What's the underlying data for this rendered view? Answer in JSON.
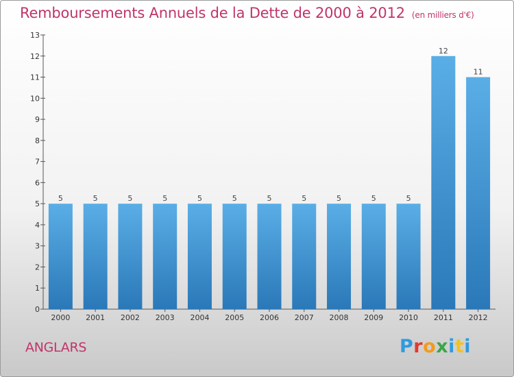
{
  "title": "Remboursements Annuels de la Dette de 2000 à 2012",
  "subtitle": "(en milliers d'€)",
  "commune": "ANGLARS",
  "logo": {
    "letters": [
      "P",
      "r",
      "o",
      "x",
      "i",
      "t",
      "i"
    ],
    "colors": [
      "#2e9be0",
      "#e03a2e",
      "#f29a1e",
      "#3aa648",
      "#2e9be0",
      "#f2c21e",
      "#2e9be0"
    ]
  },
  "colors": {
    "bar_top": "#5aaee6",
    "bar_bottom": "#2a78b8",
    "title": "#c0346a"
  },
  "chart_data": {
    "type": "bar",
    "categories": [
      "2000",
      "2001",
      "2002",
      "2003",
      "2004",
      "2005",
      "2006",
      "2007",
      "2008",
      "2009",
      "2010",
      "2011",
      "2012"
    ],
    "values": [
      5,
      5,
      5,
      5,
      5,
      5,
      5,
      5,
      5,
      5,
      5,
      12,
      11
    ],
    "data_labels": [
      "5",
      "5",
      "5",
      "5",
      "5",
      "5",
      "5",
      "5",
      "5",
      "5",
      "5",
      "12",
      "11"
    ],
    "y_ticks": [
      "0",
      "1",
      "2",
      "3",
      "4",
      "5",
      "6",
      "7",
      "8",
      "9",
      "10",
      "11",
      "12",
      "13"
    ],
    "ylim": [
      0,
      13
    ],
    "grid": false
  }
}
